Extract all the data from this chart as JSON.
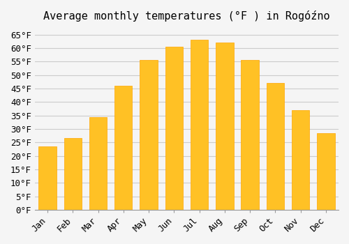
{
  "title": "Average monthly temperatures (°F ) in Rogóźno",
  "months": [
    "Jan",
    "Feb",
    "Mar",
    "Apr",
    "May",
    "Jun",
    "Jul",
    "Aug",
    "Sep",
    "Oct",
    "Nov",
    "Dec"
  ],
  "values": [
    23.5,
    26.5,
    34.5,
    46,
    55.5,
    60.5,
    63,
    62,
    55.5,
    47,
    37,
    28.5
  ],
  "bar_color": "#FFC125",
  "bar_edge_color": "#FFA500",
  "ylim": [
    0,
    67
  ],
  "yticks": [
    0,
    5,
    10,
    15,
    20,
    25,
    30,
    35,
    40,
    45,
    50,
    55,
    60,
    65
  ],
  "background_color": "#F5F5F5",
  "grid_color": "#CCCCCC",
  "title_fontsize": 11,
  "tick_fontsize": 9
}
